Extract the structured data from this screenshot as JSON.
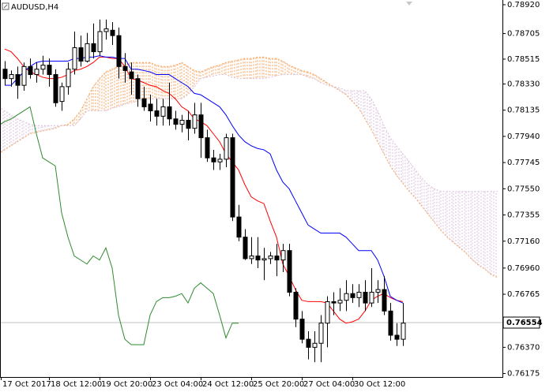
{
  "chart_data": {
    "type": "candlestick",
    "title": "AUDUSD,H4",
    "categories": [
      "17 Oct 2017",
      null,
      null,
      null,
      null,
      null,
      null,
      null,
      "18 Oct 12:00",
      null,
      null,
      null,
      null,
      null,
      null,
      null,
      "19 Oct 20:00",
      null,
      null,
      null,
      null,
      null,
      null,
      null,
      "23 Oct 04:00",
      null,
      null,
      null,
      null,
      null,
      null,
      null,
      "24 Oct 12:00",
      null,
      null,
      null,
      null,
      null,
      null,
      null,
      "25 Oct 20:00",
      null,
      null,
      null,
      null,
      null,
      null,
      null,
      "27 Oct 04:00",
      null,
      null,
      null,
      null,
      null,
      null,
      null,
      "30 Oct 12:00",
      null,
      null,
      null,
      null,
      null,
      null,
      null,
      null,
      null,
      null,
      null,
      null,
      null,
      null,
      null,
      null,
      null,
      null,
      null,
      null,
      null,
      null,
      null
    ],
    "open": [
      null,
      0.7844,
      0.7837,
      0.784,
      0.7832,
      0.7846,
      0.784,
      0.7844,
      0.7847,
      0.784,
      0.782,
      0.7831,
      0.7844,
      0.786,
      0.785,
      0.7863,
      0.7857,
      0.7872,
      0.7873,
      0.7869,
      0.7846,
      0.7842,
      0.7837,
      0.7822,
      0.7818,
      0.7813,
      0.7809,
      0.7816,
      0.7807,
      0.7803,
      0.7806,
      0.78,
      0.781,
      0.7793,
      0.7778,
      0.7775,
      0.7777,
      0.7793,
      0.7734,
      0.7719,
      0.7703,
      0.7705,
      0.7702,
      0.7703,
      0.7705,
      0.7702,
      0.7709,
      0.7678,
      0.7658,
      0.7643,
      0.7637,
      0.764,
      0.7655,
      0.7671,
      0.767,
      0.7672,
      0.7677,
      0.7674,
      0.7678,
      0.767,
      0.7678,
      0.768,
      0.7664,
      0.7646,
      0.7643,
      null,
      null,
      null,
      null,
      null,
      null,
      null,
      null,
      null,
      null,
      null,
      null,
      null,
      null,
      null
    ],
    "high": [
      null,
      0.785,
      0.7843,
      0.7846,
      0.7849,
      0.7852,
      0.7849,
      0.7854,
      0.7852,
      0.7844,
      0.7834,
      0.7849,
      0.7872,
      0.7869,
      0.7871,
      0.7878,
      0.7881,
      0.7881,
      0.7879,
      0.7875,
      0.7856,
      0.7849,
      0.784,
      0.7831,
      0.7825,
      0.7822,
      0.7822,
      0.7834,
      0.7813,
      0.781,
      0.7813,
      0.7819,
      0.7819,
      0.7799,
      0.7784,
      0.7781,
      0.7796,
      0.7796,
      0.7743,
      0.7725,
      0.7719,
      0.7719,
      0.7711,
      0.7708,
      0.7714,
      0.7714,
      0.7714,
      0.7681,
      0.7664,
      0.7649,
      0.7649,
      0.7661,
      0.7675,
      0.7678,
      0.7681,
      0.7687,
      0.7684,
      0.7684,
      0.7687,
      0.7696,
      0.7687,
      0.769,
      0.767,
      0.7655,
      0.767,
      null,
      null,
      null,
      null,
      null,
      null,
      null,
      null,
      null,
      null,
      null,
      null,
      null,
      null,
      null
    ],
    "low": [
      null,
      0.7832,
      0.7831,
      0.7822,
      0.7828,
      0.7837,
      0.7834,
      0.784,
      0.7831,
      0.7816,
      0.7813,
      0.7825,
      0.784,
      0.7846,
      0.7849,
      0.7852,
      0.7854,
      0.7866,
      0.7862,
      0.7837,
      0.7834,
      0.7825,
      0.7816,
      0.7813,
      0.7805,
      0.7802,
      0.7802,
      0.7802,
      0.7799,
      0.7797,
      0.7791,
      0.7796,
      0.7778,
      0.7775,
      0.7769,
      0.7769,
      0.7771,
      0.7731,
      0.7716,
      0.7702,
      0.7699,
      0.7696,
      0.7687,
      0.7699,
      0.769,
      0.7693,
      0.7675,
      0.7652,
      0.764,
      0.7628,
      0.7626,
      0.7626,
      0.7637,
      0.7661,
      0.7664,
      0.7664,
      0.767,
      0.7667,
      0.7664,
      0.7667,
      0.767,
      0.7661,
      0.7642,
      0.7638,
      0.7638,
      null,
      null,
      null,
      null,
      null,
      null,
      null,
      null,
      null,
      null,
      null,
      null,
      null,
      null,
      null
    ],
    "close": [
      null,
      0.7837,
      0.784,
      0.7832,
      0.7846,
      0.784,
      0.7844,
      0.7847,
      0.784,
      0.7819,
      0.7831,
      0.7844,
      0.786,
      0.785,
      0.7863,
      0.7857,
      0.7872,
      0.7874,
      0.7869,
      0.7846,
      0.7843,
      0.7837,
      0.7822,
      0.7816,
      0.7813,
      0.7809,
      0.7816,
      0.7807,
      0.7803,
      0.7806,
      0.78,
      0.781,
      0.7793,
      0.7778,
      0.7775,
      0.7777,
      0.7793,
      0.7734,
      0.7719,
      0.7703,
      0.7705,
      0.7702,
      0.7703,
      0.7705,
      0.7702,
      0.7709,
      0.7678,
      0.7658,
      0.7643,
      0.7637,
      0.764,
      0.7655,
      0.7671,
      0.767,
      0.7672,
      0.7677,
      0.7674,
      0.7678,
      0.767,
      0.7678,
      0.768,
      0.7664,
      0.7646,
      0.7643,
      0.7655,
      null,
      null,
      null,
      null,
      null,
      null,
      null,
      null,
      null,
      null,
      null,
      null,
      null,
      null,
      null
    ],
    "up_color": "#ffffff",
    "down_color": "#000000",
    "lines": [
      {
        "color": "#ff0000",
        "values": [
          null,
          0.7859,
          0.7857,
          0.7852,
          0.7846,
          0.7842,
          0.784,
          0.7838,
          0.7837,
          0.7837,
          0.7838,
          0.784,
          0.7843,
          0.7844,
          0.7846,
          0.7849,
          0.7853,
          0.7853,
          0.7852,
          0.7852,
          0.7846,
          0.7837,
          0.7836,
          0.7834,
          0.7832,
          0.7831,
          0.7828,
          0.7826,
          0.7822,
          0.7816,
          0.7813,
          0.7807,
          0.7805,
          0.7802,
          0.7796,
          0.779,
          0.7781,
          0.7775,
          0.7769,
          0.7758,
          0.7749,
          0.7746,
          0.7744,
          0.7731,
          0.7719,
          0.7699,
          0.769,
          0.768,
          0.7672,
          0.7671,
          0.7671,
          0.7671,
          0.767,
          0.7664,
          0.7658,
          0.7655,
          0.7656,
          0.7658,
          0.7664,
          0.7672,
          0.7675,
          0.7677,
          0.7674,
          0.7672,
          0.7671,
          null,
          null,
          null,
          null,
          null,
          null,
          null,
          null,
          null,
          null,
          null,
          null,
          null,
          null,
          null
        ]
      },
      {
        "color": "#0000ff",
        "values": [
          null,
          0.7832,
          0.7832,
          0.7837,
          0.7842,
          0.7846,
          0.7849,
          0.785,
          0.785,
          0.785,
          0.785,
          0.785,
          0.7852,
          0.7852,
          0.7853,
          0.7853,
          0.7854,
          0.7853,
          0.7853,
          0.7852,
          0.7852,
          0.7844,
          0.7844,
          0.7843,
          0.7842,
          0.784,
          0.784,
          0.784,
          0.7837,
          0.7834,
          0.7831,
          0.7826,
          0.7825,
          0.7822,
          0.7819,
          0.7816,
          0.781,
          0.7802,
          0.7795,
          0.779,
          0.7787,
          0.7785,
          0.7784,
          0.7781,
          0.7769,
          0.776,
          0.7755,
          0.7746,
          0.7737,
          0.7728,
          0.7725,
          0.7722,
          0.7722,
          0.7722,
          0.7722,
          0.7719,
          0.7714,
          0.7709,
          0.7709,
          0.7709,
          0.7702,
          0.769,
          0.7675,
          0.7672,
          0.767,
          null,
          null,
          null,
          null,
          null,
          null,
          null,
          null,
          null,
          null,
          null,
          null,
          null,
          null,
          null
        ]
      },
      {
        "color": "#2e8b2e",
        "values": [
          0.7802,
          0.7805,
          0.7807,
          0.781,
          0.7813,
          0.7816,
          0.7796,
          0.7778,
          0.7775,
          0.7772,
          0.7737,
          0.7719,
          0.7705,
          0.7702,
          0.7699,
          0.7705,
          0.7702,
          0.7711,
          0.7696,
          0.7661,
          0.7643,
          0.7639,
          0.7639,
          0.7639,
          0.7661,
          0.7671,
          0.7674,
          0.7674,
          0.7675,
          0.7677,
          0.767,
          0.7681,
          0.7685,
          0.7681,
          0.7677,
          0.7661,
          0.7644,
          0.7655,
          0.7655,
          null,
          null,
          null,
          null,
          null,
          null,
          null,
          null,
          null,
          null,
          null,
          null,
          null,
          null,
          null,
          null,
          null,
          null,
          null,
          null,
          null,
          null,
          null,
          null,
          null,
          null,
          null,
          null,
          null,
          null,
          null,
          null,
          null,
          null,
          null,
          null,
          null,
          null,
          null,
          null,
          null
        ]
      }
    ],
    "cloud": {
      "span_a": [
        0.7781,
        0.7784,
        0.7787,
        0.779,
        0.7793,
        0.7796,
        0.7797,
        0.7798,
        0.7799,
        0.78,
        0.7802,
        0.7803,
        0.7807,
        0.7813,
        0.7822,
        0.7831,
        0.7837,
        0.7842,
        0.7844,
        0.7846,
        0.7847,
        0.7849,
        0.7849,
        0.7849,
        0.7849,
        0.7847,
        0.7846,
        0.7846,
        0.7847,
        0.7849,
        0.7846,
        0.7843,
        0.7842,
        0.7844,
        0.7846,
        0.7847,
        0.7849,
        0.785,
        0.7851,
        0.7852,
        0.7852,
        0.7853,
        0.7853,
        0.7852,
        0.7852,
        0.785,
        0.7847,
        0.7845,
        0.7843,
        0.7842,
        0.784,
        0.7837,
        0.7834,
        0.7831,
        0.7828,
        0.7825,
        0.782,
        0.7815,
        0.7807,
        0.7799,
        0.779,
        0.7781,
        0.7772,
        0.7765,
        0.7759,
        0.7753,
        0.7748,
        0.7742,
        0.7736,
        0.773,
        0.7724,
        0.7719,
        0.7715,
        0.7711,
        0.7707,
        0.7702,
        0.7698,
        0.7695,
        0.7691,
        0.7689
      ],
      "span_b": [
        0.7816,
        0.7813,
        0.781,
        0.7807,
        0.7805,
        0.7803,
        0.7802,
        0.7802,
        0.7802,
        0.7802,
        0.7802,
        0.7802,
        0.7802,
        0.7807,
        0.7813,
        0.7813,
        0.7813,
        0.7813,
        0.7815,
        0.7816,
        0.7818,
        0.7819,
        0.782,
        0.7822,
        0.7822,
        0.7822,
        0.7822,
        0.7822,
        0.7822,
        0.7822,
        0.7825,
        0.7831,
        0.7837,
        0.7838,
        0.7839,
        0.784,
        0.784,
        0.7838,
        0.7837,
        0.7837,
        0.7837,
        0.7837,
        0.7837,
        0.7838,
        0.7839,
        0.784,
        0.784,
        0.784,
        0.784,
        0.7838,
        0.7837,
        0.7834,
        0.7832,
        0.7831,
        0.783,
        0.7828,
        0.7828,
        0.7828,
        0.7828,
        0.7822,
        0.7813,
        0.7802,
        0.7793,
        0.7787,
        0.7781,
        0.7775,
        0.7769,
        0.7763,
        0.7758,
        0.7755,
        0.7753,
        0.7753,
        0.7753,
        0.7753,
        0.7753,
        0.7753,
        0.7753,
        0.7753,
        0.7753,
        0.7753
      ],
      "up_color": "#f4a460",
      "down_color": "#d8bfd8"
    },
    "current_price": 0.76554,
    "ylim": [
      0.76149,
      0.78955
    ],
    "yticks": [
      {
        "value": 0.7892,
        "label": "0.78920"
      },
      0.78705,
      0.78515,
      {
        "value": 0.7833,
        "label": "0.78330"
      },
      0.78135,
      {
        "value": 0.7794,
        "label": "0.77940"
      },
      0.77745,
      {
        "value": 0.7755,
        "label": "0.77550"
      },
      0.77355,
      {
        "value": 0.7716,
        "label": "0.77160"
      },
      {
        "value": 0.7696,
        "label": "0.76960"
      },
      0.76765,
      {
        "value": 0.7637,
        "label": "0.76370"
      },
      0.76175
    ]
  }
}
